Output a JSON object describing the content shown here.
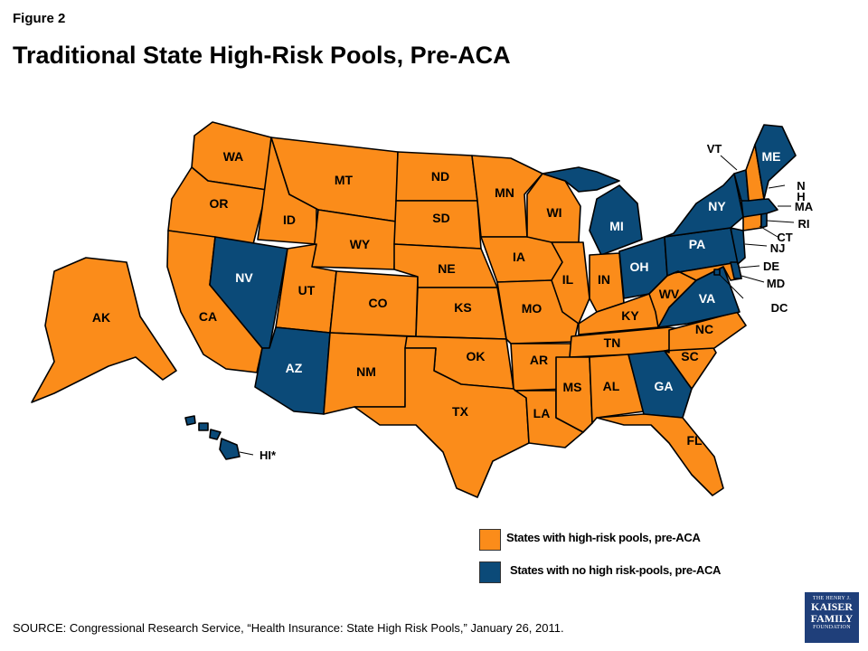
{
  "figure_label": "Figure 2",
  "title": "Traditional State High-Risk Pools, Pre-ACA",
  "colors": {
    "with_pool": "#fb8c1a",
    "no_pool": "#0b4a78"
  },
  "states": {
    "WA": "with_pool",
    "OR": "with_pool",
    "CA": "with_pool",
    "ID": "with_pool",
    "NV": "no_pool",
    "MT": "with_pool",
    "WY": "with_pool",
    "UT": "with_pool",
    "AZ": "no_pool",
    "CO": "with_pool",
    "NM": "with_pool",
    "ND": "with_pool",
    "SD": "with_pool",
    "NE": "with_pool",
    "KS": "with_pool",
    "OK": "with_pool",
    "TX": "with_pool",
    "MN": "with_pool",
    "IA": "with_pool",
    "MO": "with_pool",
    "AR": "with_pool",
    "LA": "with_pool",
    "WI": "with_pool",
    "IL": "with_pool",
    "MI": "no_pool",
    "IN": "with_pool",
    "OH": "no_pool",
    "KY": "with_pool",
    "TN": "with_pool",
    "MS": "with_pool",
    "AL": "with_pool",
    "GA": "no_pool",
    "FL": "with_pool",
    "SC": "with_pool",
    "NC": "with_pool",
    "VA": "no_pool",
    "WV": "with_pool",
    "PA": "no_pool",
    "NY": "no_pool",
    "VT": "no_pool",
    "NH": "with_pool",
    "ME": "no_pool",
    "MA": "no_pool",
    "RI": "no_pool",
    "CT": "with_pool",
    "NJ": "no_pool",
    "DE": "no_pool",
    "MD": "with_pool",
    "DC": "no_pool",
    "AK": "with_pool",
    "HI": "no_pool"
  },
  "labels": {
    "WA": "WA",
    "OR": "OR",
    "CA": "CA",
    "ID": "ID",
    "NV": "NV",
    "MT": "MT",
    "WY": "WY",
    "UT": "UT",
    "AZ": "AZ",
    "CO": "CO",
    "NM": "NM",
    "ND": "ND",
    "SD": "SD",
    "NE": "NE",
    "KS": "KS",
    "OK": "OK",
    "TX": "TX",
    "MN": "MN",
    "IA": "IA",
    "MO": "MO",
    "AR": "AR",
    "LA": "LA",
    "WI": "WI",
    "IL": "IL",
    "MI": "MI",
    "IN": "IN",
    "OH": "OH",
    "KY": "KY",
    "TN": "TN",
    "MS": "MS",
    "AL": "AL",
    "GA": "GA",
    "FL": "FL",
    "SC": "SC",
    "NC": "NC",
    "VA": "VA",
    "WV": "WV",
    "PA": "PA",
    "NY": "NY",
    "ME": "ME",
    "AK": "AK",
    "VT": "VT",
    "NH": "N\nH",
    "MA": "MA",
    "RI": "RI",
    "CT": "CT",
    "NJ": "NJ",
    "DE": "DE",
    "MD": "MD",
    "DC": "DC",
    "HI": "HI*"
  },
  "legend": {
    "with_pool": "States with high-risk pools, pre-ACA",
    "no_pool": "States with no high risk-pools, pre-ACA"
  },
  "source": "SOURCE: Congressional Research Service, “Health Insurance: State High Risk Pools,” January 26, 2011.",
  "logo": {
    "line1": "THE HENRY J.",
    "line2": "KAISER",
    "line3": "FAMILY",
    "line4": "FOUNDATION"
  }
}
